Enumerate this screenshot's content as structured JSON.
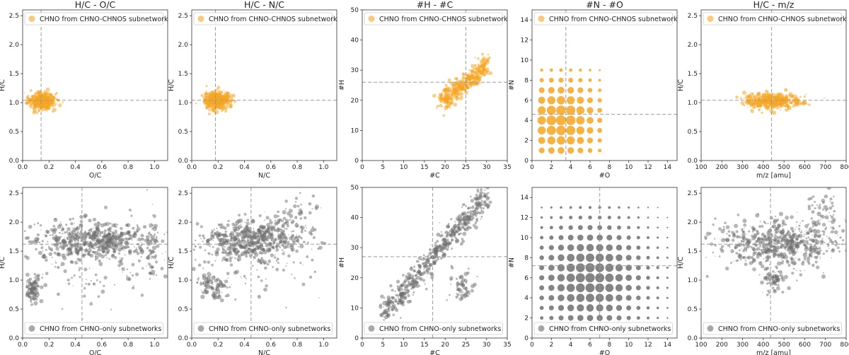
{
  "figure": {
    "orange_color": "#f5a623",
    "gray_color": "#6e6e6e",
    "median_line_color": "#999999"
  },
  "chart_data": [
    {
      "type": "scatter",
      "row": 0,
      "col": 0,
      "title": "H/C - O/C",
      "xlabel": "O/C",
      "ylabel": "H/C",
      "xlim": [
        0,
        1.1
      ],
      "ylim": [
        0,
        2.6
      ],
      "xticks": [
        "0.0",
        "0.2",
        "0.4",
        "0.6",
        "0.8",
        "1.0"
      ],
      "yticks": [
        "0.0",
        "0.5",
        "1.0",
        "1.5",
        "2.0",
        "2.5"
      ],
      "series": [
        {
          "name": "CHNO from CHNO-CHNOS subnetwork",
          "color": "orange",
          "clusters": [
            {
              "x": 0.14,
              "y": 1.03,
              "sx": 0.05,
              "sy": 0.07,
              "n": 420
            }
          ]
        }
      ],
      "median": {
        "x": 0.14,
        "y": 1.04
      }
    },
    {
      "type": "scatter",
      "row": 0,
      "col": 1,
      "title": "H/C - N/C",
      "xlabel": "N/C",
      "ylabel": "H/C",
      "xlim": [
        0,
        1.1
      ],
      "ylim": [
        0,
        2.6
      ],
      "xticks": [
        "0.0",
        "0.2",
        "0.4",
        "0.6",
        "0.8",
        "1.0"
      ],
      "yticks": [
        "0.0",
        "0.5",
        "1.0",
        "1.5",
        "2.0",
        "2.5"
      ],
      "series": [
        {
          "name": "CHNO from CHNO-CHNOS subnetwork",
          "color": "orange",
          "clusters": [
            {
              "x": 0.19,
              "y": 1.04,
              "sx": 0.05,
              "sy": 0.07,
              "n": 420
            }
          ]
        }
      ],
      "median": {
        "x": 0.18,
        "y": 1.04
      }
    },
    {
      "type": "scatter",
      "row": 0,
      "col": 2,
      "title": "#H - #C",
      "xlabel": "#C",
      "ylabel": "#H",
      "xlim": [
        0,
        35
      ],
      "ylim": [
        0,
        50
      ],
      "xticks": [
        "0",
        "5",
        "10",
        "15",
        "20",
        "25",
        "30",
        "35"
      ],
      "yticks": [
        "0",
        "10",
        "20",
        "30",
        "40",
        "50"
      ],
      "series": [
        {
          "name": "CHNO from CHNO-CHNOS subnetwork",
          "color": "orange",
          "band": {
            "x0": 19,
            "x1": 30,
            "y0": 19.5,
            "y1": 31.5,
            "w": 3.5,
            "n": 380
          }
        }
      ],
      "median": {
        "x": 25,
        "y": 26
      }
    },
    {
      "type": "scatter",
      "row": 0,
      "col": 3,
      "title": "#N - #O",
      "xlabel": "#O",
      "ylabel": "#N",
      "xlim": [
        0,
        15
      ],
      "ylim": [
        0,
        15
      ],
      "xticks": [
        "0",
        "2",
        "4",
        "6",
        "8",
        "10",
        "12",
        "14"
      ],
      "yticks": [
        "0",
        "2",
        "4",
        "6",
        "8",
        "10",
        "12",
        "14"
      ],
      "series": [
        {
          "name": "CHNO from CHNO-CHNOS subnetwork",
          "color": "orange",
          "grid": {
            "x0": 1,
            "x1": 7,
            "y0": 1,
            "y1": 9,
            "cx": 3,
            "cy": 4,
            "spread": 3.2,
            "rmax": 6.5
          }
        }
      ],
      "median": {
        "x": 3.5,
        "y": 4.6
      }
    },
    {
      "type": "scatter",
      "row": 0,
      "col": 4,
      "title": "H/C - m/z",
      "xlabel": "m/z [amu]",
      "ylabel": "H/C",
      "xlim": [
        100,
        800
      ],
      "ylim": [
        0,
        2.6
      ],
      "xticks": [
        "100",
        "200",
        "300",
        "400",
        "500",
        "600",
        "700",
        "800"
      ],
      "yticks": [
        "0.0",
        "0.5",
        "1.0",
        "1.5",
        "2.0",
        "2.5"
      ],
      "series": [
        {
          "name": "CHNO from CHNO-CHNOS subnetwork",
          "color": "orange",
          "clusters": [
            {
              "x": 445,
              "y": 1.02,
              "sx": 65,
              "sy": 0.07,
              "n": 420
            }
          ]
        }
      ],
      "median": {
        "x": 440,
        "y": 1.04
      }
    },
    {
      "type": "scatter",
      "row": 1,
      "col": 0,
      "xlabel": "O/C",
      "ylabel": "H/C",
      "xlim": [
        0,
        1.1
      ],
      "ylim": [
        0,
        2.6
      ],
      "xticks": [
        "0.0",
        "0.2",
        "0.4",
        "0.6",
        "0.8",
        "1.0"
      ],
      "yticks": [
        "0.0",
        "0.5",
        "1.0",
        "1.5",
        "2.0",
        "2.5"
      ],
      "series": [
        {
          "name": "CHNO from CHNO-only subnetworks",
          "color": "gray",
          "clusters": [
            {
              "x": 0.55,
              "y": 1.68,
              "sx": 0.22,
              "sy": 0.16,
              "n": 600
            },
            {
              "x": 0.08,
              "y": 0.85,
              "sx": 0.03,
              "sy": 0.1,
              "n": 90
            },
            {
              "x": 0.98,
              "y": 1.6,
              "sx": 0.015,
              "sy": 0.3,
              "n": 50
            },
            {
              "x": 0.5,
              "y": 1.2,
              "sx": 0.35,
              "sy": 0.3,
              "n": 120
            }
          ]
        }
      ],
      "median": {
        "x": 0.45,
        "y": 1.62
      }
    },
    {
      "type": "scatter",
      "row": 1,
      "col": 1,
      "xlabel": "N/C",
      "ylabel": "H/C",
      "xlim": [
        0,
        1.1
      ],
      "ylim": [
        0,
        2.6
      ],
      "xticks": [
        "0.0",
        "0.2",
        "0.4",
        "0.6",
        "0.8",
        "1.0"
      ],
      "yticks": [
        "0.0",
        "0.5",
        "1.0",
        "1.5",
        "2.0",
        "2.5"
      ],
      "series": [
        {
          "name": "CHNO from CHNO-only subnetworks",
          "color": "gray",
          "clusters": [
            {
              "x": 0.45,
              "y": 1.7,
              "sx": 0.18,
              "sy": 0.17,
              "n": 550
            },
            {
              "x": 0.15,
              "y": 0.9,
              "sx": 0.05,
              "sy": 0.1,
              "n": 100
            },
            {
              "x": 0.75,
              "y": 1.9,
              "sx": 0.12,
              "sy": 0.25,
              "n": 80
            },
            {
              "x": 0.4,
              "y": 1.3,
              "sx": 0.3,
              "sy": 0.3,
              "n": 120
            }
          ]
        }
      ],
      "median": {
        "x": 0.45,
        "y": 1.62
      }
    },
    {
      "type": "scatter",
      "row": 1,
      "col": 2,
      "xlabel": "#C",
      "ylabel": "#H",
      "xlim": [
        0,
        35
      ],
      "ylim": [
        0,
        50
      ],
      "xticks": [
        "0",
        "5",
        "10",
        "15",
        "20",
        "25",
        "30",
        "35"
      ],
      "yticks": [
        "0",
        "10",
        "20",
        "30",
        "40",
        "50"
      ],
      "series": [
        {
          "name": "CHNO from CHNO-only subnetworks",
          "color": "gray",
          "band": {
            "x0": 5,
            "x1": 30,
            "y0": 8,
            "y1": 47,
            "w": 4.5,
            "n": 600
          },
          "clusters": [
            {
              "x": 24,
              "y": 17,
              "sx": 1.5,
              "sy": 2.5,
              "n": 60
            }
          ]
        }
      ],
      "median": {
        "x": 17,
        "y": 27
      }
    },
    {
      "type": "scatter",
      "row": 1,
      "col": 3,
      "xlabel": "#O",
      "ylabel": "#N",
      "xlim": [
        0,
        15
      ],
      "ylim": [
        0,
        15
      ],
      "xticks": [
        "0",
        "2",
        "4",
        "6",
        "8",
        "10",
        "12",
        "14"
      ],
      "yticks": [
        "0",
        "2",
        "4",
        "6",
        "8",
        "10",
        "12",
        "14"
      ],
      "series": [
        {
          "name": "CHNO from CHNO-only subnetworks",
          "color": "gray",
          "grid": {
            "x0": 1,
            "x1": 14,
            "y0": 1,
            "y1": 13,
            "cx": 6,
            "cy": 6,
            "spread": 4.2,
            "rmax": 6
          }
        }
      ],
      "median": {
        "x": 7,
        "y": 7.2
      }
    },
    {
      "type": "scatter",
      "row": 1,
      "col": 4,
      "xlabel": "m/z [amu]",
      "ylabel": "H/C",
      "xlim": [
        100,
        800
      ],
      "ylim": [
        0,
        2.6
      ],
      "xticks": [
        "100",
        "200",
        "300",
        "400",
        "500",
        "600",
        "700",
        "800"
      ],
      "yticks": [
        "0.0",
        "0.5",
        "1.0",
        "1.5",
        "2.0",
        "2.5"
      ],
      "series": [
        {
          "name": "CHNO from CHNO-only subnetworks",
          "color": "gray",
          "clusters": [
            {
              "x": 470,
              "y": 1.62,
              "sx": 150,
              "sy": 0.2,
              "n": 650
            },
            {
              "x": 455,
              "y": 1.0,
              "sx": 30,
              "sy": 0.12,
              "n": 80
            },
            {
              "x": 700,
              "y": 2.1,
              "sx": 50,
              "sy": 0.2,
              "n": 60
            }
          ]
        }
      ],
      "median": {
        "x": 435,
        "y": 1.62
      }
    }
  ]
}
